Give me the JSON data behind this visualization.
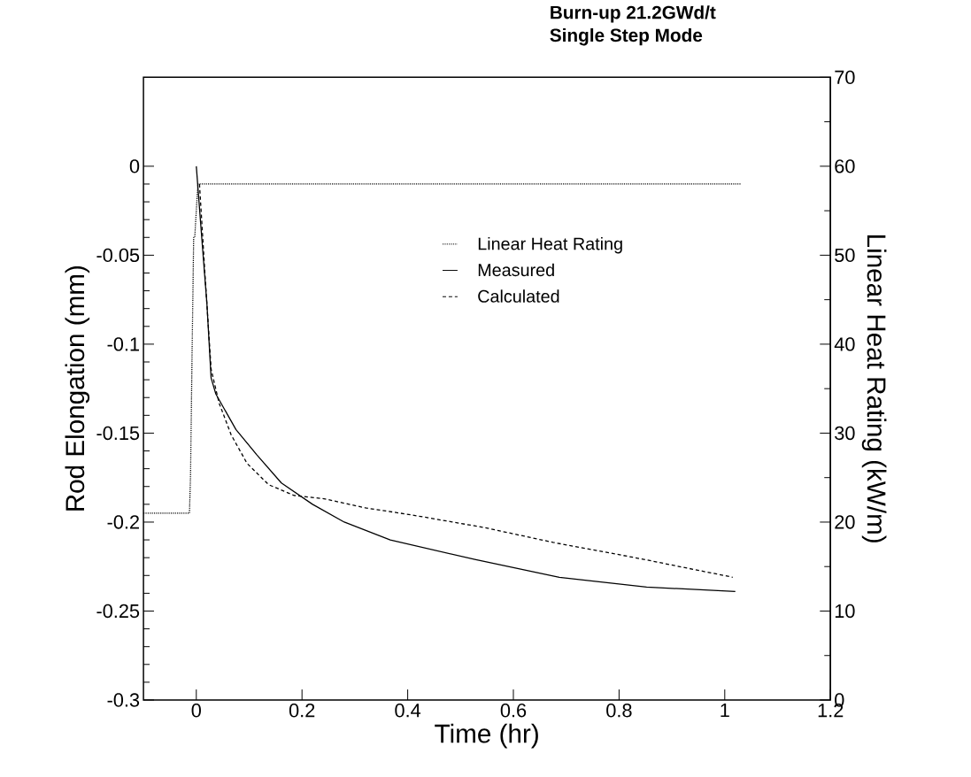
{
  "chart_data": {
    "type": "line",
    "title": "Burn-up 21.2GWd/t",
    "subtitle": "Single Step Mode",
    "xlabel": "Time  (hr)",
    "ylabel": "Rod Elongation  (mm)",
    "y2label": "Linear Heat Rating  (kW/m)",
    "xlim": [
      -0.1,
      1.2
    ],
    "xticks": [
      0,
      0.2,
      0.4,
      0.6,
      0.8,
      1,
      1.2
    ],
    "ylim": [
      -0.3,
      0.05
    ],
    "yticks": [
      -0.3,
      -0.25,
      -0.2,
      -0.15,
      -0.1,
      -0.05,
      0
    ],
    "y2lim": [
      0,
      70
    ],
    "y2ticks": [
      0,
      10,
      20,
      30,
      40,
      50,
      60,
      70
    ],
    "legend": "right",
    "marker": "none",
    "series": [
      {
        "name": "Linear Heat Rating",
        "color": "#000000",
        "axis": "y2",
        "line_style": "dotted",
        "x": [
          -0.1,
          -0.013,
          -0.011,
          -0.008,
          -0.005,
          -0.003,
          0.003,
          1.03
        ],
        "values": [
          21,
          21,
          25,
          39,
          52,
          52,
          58,
          58
        ]
      },
      {
        "name": "Measured",
        "color": "#000000",
        "line_style": "solid",
        "x": [
          0,
          0.01,
          0.02,
          0.028,
          0.037,
          0.075,
          0.114,
          0.161,
          0.22,
          0.28,
          0.367,
          0.527,
          0.687,
          0.852,
          1.02
        ],
        "values": [
          0,
          -0.039,
          -0.077,
          -0.119,
          -0.128,
          -0.148,
          -0.162,
          -0.178,
          -0.19,
          -0.2,
          -0.21,
          -0.221,
          -0.231,
          -0.2365,
          -0.239
        ]
      },
      {
        "name": "Calculated",
        "color": "#000000",
        "line_style": "dashed",
        "x": [
          0.006,
          0.016,
          0.028,
          0.043,
          0.066,
          0.096,
          0.137,
          0.185,
          0.244,
          0.32,
          0.408,
          0.544,
          0.675,
          0.841,
          1.015
        ],
        "values": [
          -0.01,
          -0.059,
          -0.114,
          -0.133,
          -0.151,
          -0.167,
          -0.179,
          -0.185,
          -0.187,
          -0.192,
          -0.196,
          -0.203,
          -0.2114,
          -0.2206,
          -0.231
        ]
      }
    ]
  }
}
